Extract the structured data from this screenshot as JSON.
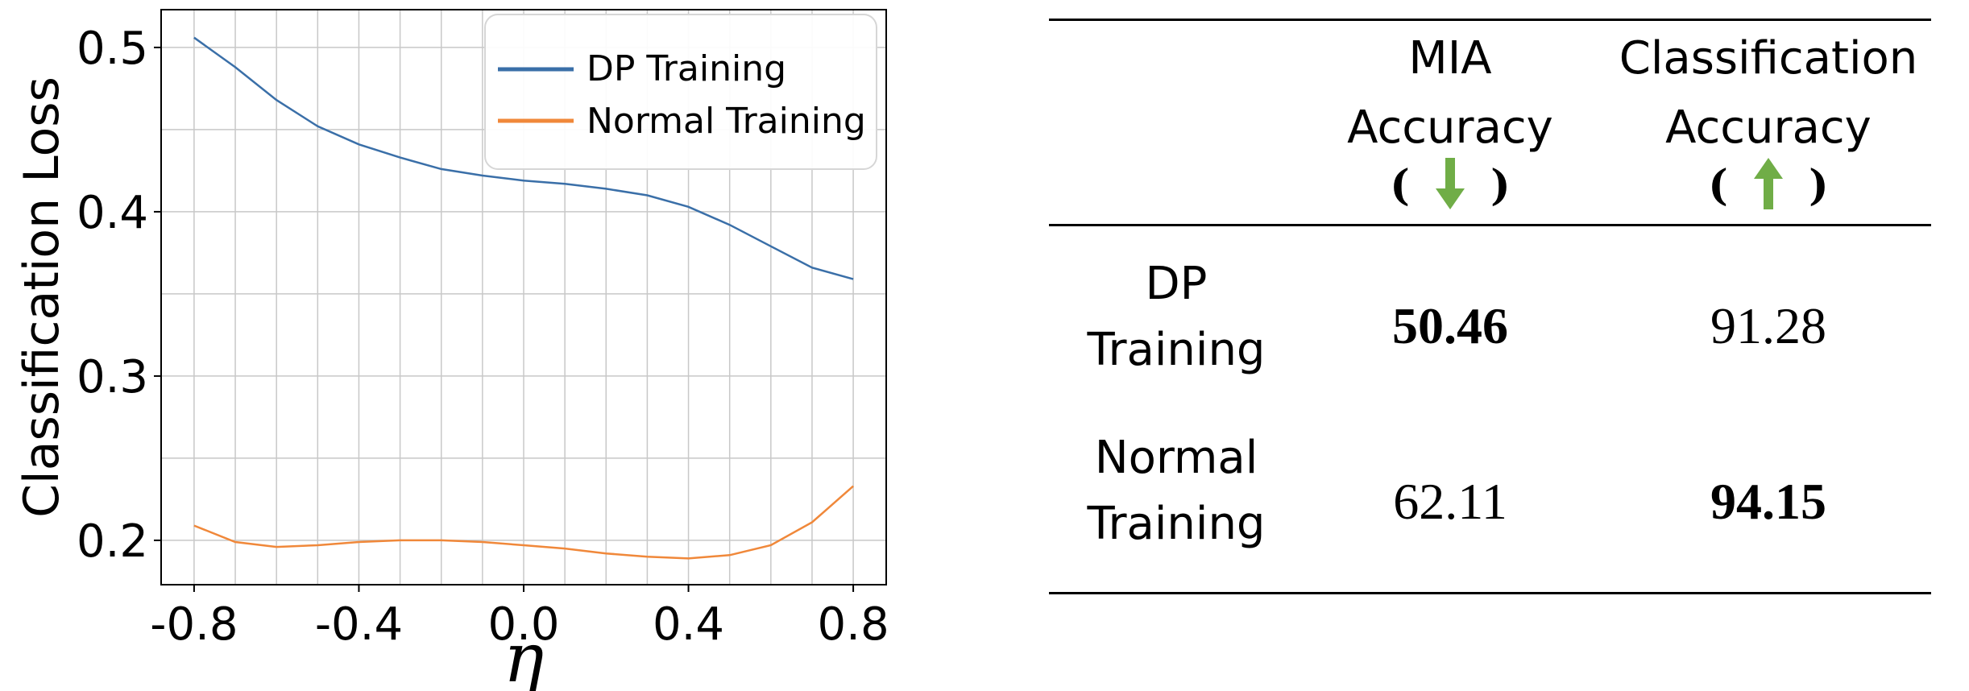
{
  "chart_data": {
    "type": "line",
    "xlabel": "η",
    "ylabel": "Classification Loss",
    "xlim": [
      -0.88,
      0.88
    ],
    "ylim": [
      0.173,
      0.523
    ],
    "xticks": [
      "-0.8",
      "-0.4",
      "0.0",
      "0.4",
      "0.8"
    ],
    "yticks": [
      "0.2",
      "0.3",
      "0.4",
      "0.5"
    ],
    "grid": true,
    "legend": "top-right",
    "x": [
      -0.8,
      -0.7,
      -0.6,
      -0.5,
      -0.4,
      -0.3,
      -0.2,
      -0.1,
      0.0,
      0.1,
      0.2,
      0.3,
      0.4,
      0.5,
      0.6,
      0.7,
      0.8
    ],
    "series": [
      {
        "name": "DP Training",
        "color": "#3a6fa8",
        "values": [
          0.506,
          0.488,
          0.468,
          0.452,
          0.441,
          0.433,
          0.426,
          0.422,
          0.419,
          0.417,
          0.414,
          0.41,
          0.403,
          0.392,
          0.379,
          0.366,
          0.359
        ]
      },
      {
        "name": "Normal Training",
        "color": "#f0883a",
        "values": [
          0.209,
          0.199,
          0.196,
          0.197,
          0.199,
          0.2,
          0.2,
          0.199,
          0.197,
          0.195,
          0.192,
          0.19,
          0.189,
          0.191,
          0.197,
          0.211,
          0.233
        ]
      }
    ]
  },
  "table": {
    "headers": {
      "mia_line1": "MIA",
      "mia_line2": "Accuracy",
      "cls_line1": "Classification",
      "cls_line2": "Accuracy",
      "paren_open": "(",
      "paren_close": ")",
      "mia_arrow": "down-arrow-icon",
      "cls_arrow": "up-arrow-icon",
      "arrow_color": "#70ad47"
    },
    "rows": [
      {
        "label_line1": "DP",
        "label_line2": "Training",
        "mia": "50.46",
        "cls": "91.28"
      },
      {
        "label_line1": "Normal",
        "label_line2": "Training",
        "mia": "62.11",
        "cls": "94.15"
      }
    ]
  }
}
